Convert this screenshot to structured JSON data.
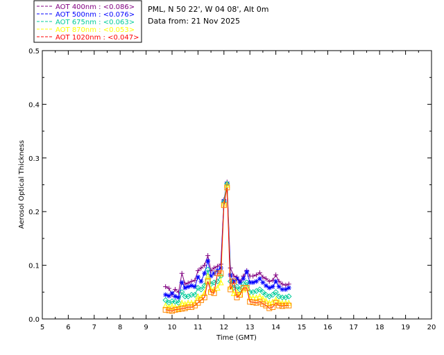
{
  "chart_data": {
    "type": "line",
    "xlabel": "Time (GMT)",
    "ylabel": "Aerosol Optical Thickness",
    "xlim": [
      5,
      20
    ],
    "ylim": [
      0.0,
      0.5
    ],
    "x_ticks": [
      "5",
      "6",
      "7",
      "8",
      "9",
      "10",
      "11",
      "12",
      "13",
      "14",
      "15",
      "16",
      "17",
      "18",
      "19",
      "20"
    ],
    "y_ticks": [
      "0.0",
      "0.1",
      "0.2",
      "0.3",
      "0.4",
      "0.5"
    ],
    "info_lines": [
      "PML, N 50 22', W 04 08', Alt 0m",
      "Data from: 21 Nov 2025"
    ],
    "legend_position": "top-left (outside plot)",
    "x": [
      9.75,
      9.88,
      10.0,
      10.12,
      10.25,
      10.38,
      10.5,
      10.62,
      10.75,
      10.88,
      11.0,
      11.12,
      11.25,
      11.38,
      11.5,
      11.62,
      11.75,
      11.88,
      12.0,
      12.12,
      12.25,
      12.38,
      12.5,
      12.62,
      12.75,
      12.88,
      13.0,
      13.12,
      13.25,
      13.38,
      13.5,
      13.62,
      13.75,
      13.88,
      14.0,
      14.12,
      14.25,
      14.38,
      14.5
    ],
    "series": [
      {
        "name": "AOT  400nm",
        "label": "AOT  400nm : <0.086>",
        "color": "#800080",
        "marker": "plus",
        "values": [
          0.06,
          0.057,
          0.045,
          0.055,
          0.05,
          0.085,
          0.065,
          0.067,
          0.07,
          0.072,
          0.09,
          0.095,
          0.1,
          0.118,
          0.09,
          0.095,
          0.098,
          0.102,
          0.222,
          0.255,
          0.095,
          0.08,
          0.078,
          0.07,
          0.08,
          0.09,
          0.08,
          0.08,
          0.082,
          0.086,
          0.078,
          0.075,
          0.07,
          0.072,
          0.082,
          0.07,
          0.065,
          0.063,
          0.065
        ]
      },
      {
        "name": "AOT  500nm",
        "label": "AOT  500nm : <0.076>",
        "color": "#0000ff",
        "marker": "asterisk",
        "values": [
          0.045,
          0.043,
          0.048,
          0.042,
          0.04,
          0.068,
          0.058,
          0.06,
          0.062,
          0.06,
          0.078,
          0.07,
          0.085,
          0.108,
          0.08,
          0.085,
          0.09,
          0.095,
          0.22,
          0.252,
          0.082,
          0.07,
          0.075,
          0.068,
          0.075,
          0.088,
          0.068,
          0.068,
          0.07,
          0.075,
          0.068,
          0.062,
          0.058,
          0.06,
          0.07,
          0.06,
          0.055,
          0.055,
          0.058
        ]
      },
      {
        "name": "AOT  675nm",
        "label": "AOT  675nm : <0.063>",
        "color": "#00cc99",
        "marker": "diamond",
        "values": [
          0.035,
          0.03,
          0.033,
          0.032,
          0.03,
          0.05,
          0.042,
          0.042,
          0.045,
          0.045,
          0.058,
          0.055,
          0.062,
          0.092,
          0.065,
          0.068,
          0.07,
          0.08,
          0.218,
          0.252,
          0.07,
          0.058,
          0.06,
          0.055,
          0.065,
          0.068,
          0.05,
          0.05,
          0.052,
          0.055,
          0.05,
          0.045,
          0.042,
          0.045,
          0.05,
          0.042,
          0.04,
          0.04,
          0.042
        ]
      },
      {
        "name": "AOT  870nm",
        "label": "AOT  870nm : <0.053>",
        "color": "#ffff00",
        "marker": "triangle",
        "values": [
          0.025,
          0.022,
          0.024,
          0.022,
          0.02,
          0.03,
          0.028,
          0.03,
          0.03,
          0.03,
          0.042,
          0.04,
          0.048,
          0.08,
          0.055,
          0.055,
          0.058,
          0.068,
          0.215,
          0.25,
          0.06,
          0.048,
          0.05,
          0.045,
          0.055,
          0.058,
          0.04,
          0.04,
          0.04,
          0.042,
          0.038,
          0.034,
          0.03,
          0.032,
          0.036,
          0.032,
          0.03,
          0.03,
          0.03
        ]
      },
      {
        "name": "AOT 1020nm",
        "label": "AOT 1020nm : <0.047>",
        "color": "#ff0000",
        "marker": "square",
        "values": [
          0.017,
          0.016,
          0.015,
          0.017,
          0.018,
          0.019,
          0.02,
          0.022,
          0.022,
          0.025,
          0.03,
          0.035,
          0.04,
          0.07,
          0.05,
          0.048,
          0.085,
          0.085,
          0.212,
          0.245,
          0.055,
          0.07,
          0.04,
          0.045,
          0.058,
          0.058,
          0.032,
          0.031,
          0.03,
          0.032,
          0.028,
          0.025,
          0.02,
          0.022,
          0.03,
          0.025,
          0.024,
          0.025,
          0.025
        ]
      }
    ]
  }
}
